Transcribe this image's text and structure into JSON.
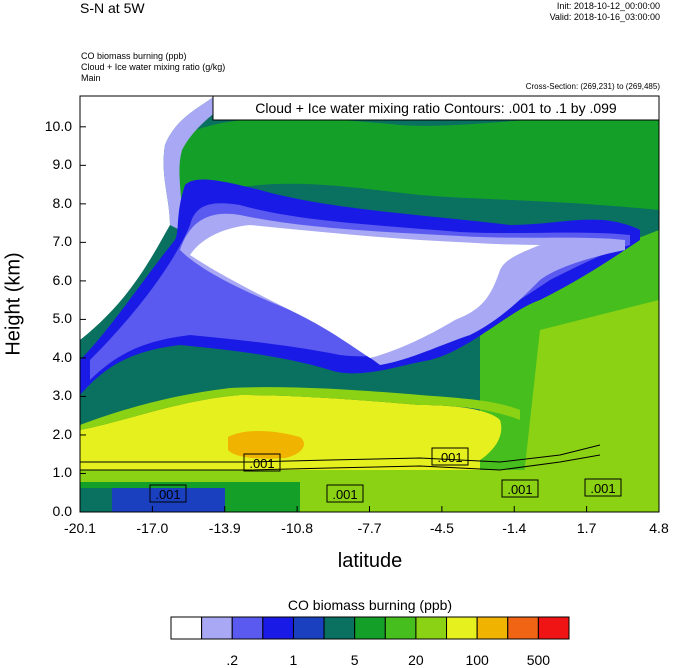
{
  "header": {
    "title": "S-N at 5W",
    "init": "Init: 2018-10-12_00:00:00",
    "valid": "Valid: 2018-10-16_03:00:00",
    "var1": "CO biomass burning   (ppb)",
    "var2": "Cloud + Ice water mixing ratio   (g/kg)",
    "var3": "Main",
    "cross_section": "Cross-Section: (269,231) to (269,485)"
  },
  "colors": {
    "levels": [
      "#ffffff",
      "#a8a8f4",
      "#5a5af0",
      "#1a1ae6",
      "#1a40c0",
      "#0a7060",
      "#14a028",
      "#46be1e",
      "#8cd214",
      "#e6f01e",
      "#f0b400",
      "#f06414",
      "#f01414"
    ]
  },
  "chart_data": {
    "type": "contour",
    "title": "Cloud + Ice water mixing ratio Contours: .001 to .1 by .099",
    "xlabel": "latitude",
    "ylabel": "Height (km)",
    "x_ticks": [
      "-20.1",
      "-17.0",
      "-13.9",
      "-10.8",
      "-7.7",
      "-4.5",
      "-1.4",
      "1.7",
      "4.8"
    ],
    "y_ticks": [
      "0.0",
      "1.0",
      "2.0",
      "3.0",
      "4.0",
      "5.0",
      "6.0",
      "7.0",
      "8.0",
      "9.0",
      "10.0"
    ],
    "xlim": [
      -20.1,
      4.8
    ],
    "ylim": [
      0,
      10.8
    ],
    "contour_labels": [
      ".001",
      ".001",
      ".001",
      ".001",
      ".001",
      ".001"
    ],
    "colorbar": {
      "title": "CO biomass burning  (ppb)",
      "tick_labels": [
        ".2",
        "1",
        "5",
        "20",
        "100",
        "500"
      ]
    }
  }
}
